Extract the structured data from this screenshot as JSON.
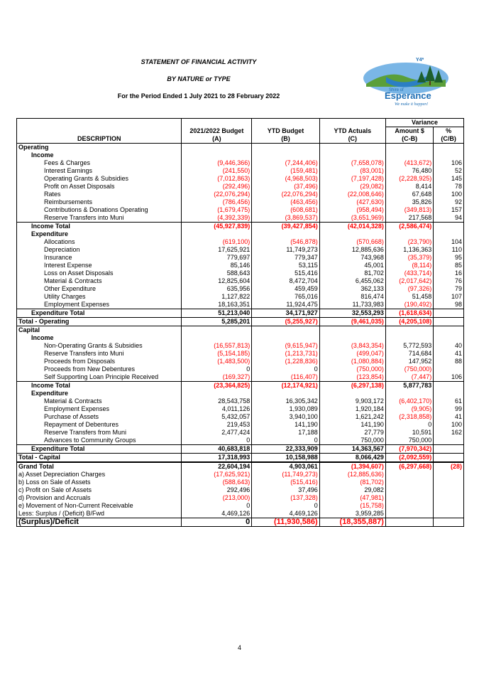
{
  "header": {
    "title": "STATEMENT OF FINANCIAL ACTIVITY",
    "subtitle": "BY NATURE or TYPE",
    "period": "For the Period Ended 1 July 2021 to 28 February 2022"
  },
  "logo": {
    "shire_of": "Shire of",
    "name": "Esperance",
    "tagline": "We make it happen!",
    "mark": "Y4*"
  },
  "columns": {
    "variance": "Variance",
    "description": "DESCRIPTION",
    "budget": "2021/2022 Budget",
    "budget_sub": "(A)",
    "ytd_budget": "YTD Budget",
    "ytd_budget_sub": "(B)",
    "ytd_actuals": "YTD Actuals",
    "ytd_actuals_sub": "(C)",
    "amount": "Amount $",
    "amount_sub": "(C-B)",
    "pct": "%",
    "pct_sub": "(C/B)"
  },
  "rows": [
    {
      "label": "Operating",
      "level": 0,
      "bold": true,
      "v": [
        "",
        "",
        "",
        "",
        ""
      ]
    },
    {
      "label": "Income",
      "level": 1,
      "bold": true,
      "v": [
        "",
        "",
        "",
        "",
        ""
      ]
    },
    {
      "label": "Fees & Charges",
      "level": 2,
      "v": [
        "(9,446,366)",
        "(7,244,406)",
        "(7,658,078)",
        "(413,672)",
        "106"
      ]
    },
    {
      "label": "Interest Earnings",
      "level": 2,
      "v": [
        "(241,550)",
        "(159,481)",
        "(83,001)",
        "76,480",
        "52"
      ]
    },
    {
      "label": "Operating Grants & Subsidies",
      "level": 2,
      "v": [
        "(7,012,863)",
        "(4,968,503)",
        "(7,197,428)",
        "(2,228,925)",
        "145"
      ]
    },
    {
      "label": "Profit on Asset Disposals",
      "level": 2,
      "v": [
        "(292,496)",
        "(37,496)",
        "(29,082)",
        "8,414",
        "78"
      ]
    },
    {
      "label": "Rates",
      "level": 2,
      "v": [
        "(22,076,294)",
        "(22,076,294)",
        "(22,008,646)",
        "67,648",
        "100"
      ]
    },
    {
      "label": "Reimbursements",
      "level": 2,
      "v": [
        "(786,456)",
        "(463,456)",
        "(427,630)",
        "35,826",
        "92"
      ]
    },
    {
      "label": "Contributions & Donations Operating",
      "level": 2,
      "v": [
        "(1,679,475)",
        "(608,681)",
        "(958,494)",
        "(349,813)",
        "157"
      ]
    },
    {
      "label": "Reserve Transfers into Muni",
      "level": 2,
      "v": [
        "(4,392,339)",
        "(3,869,537)",
        "(3,651,969)",
        "217,568",
        "94"
      ]
    },
    {
      "label": "Income Total",
      "level": 1,
      "bold": true,
      "border": "total",
      "v": [
        "(45,927,839)",
        "(39,427,854)",
        "(42,014,328)",
        "(2,586,474)",
        ""
      ]
    },
    {
      "label": "",
      "level": 0,
      "v": [
        "",
        "",
        "",
        "",
        ""
      ]
    },
    {
      "label": "Expenditure",
      "level": 1,
      "bold": true,
      "v": [
        "",
        "",
        "",
        "",
        ""
      ]
    },
    {
      "label": "Allocations",
      "level": 2,
      "v": [
        "(619,100)",
        "(546,878)",
        "(570,668)",
        "(23,790)",
        "104"
      ]
    },
    {
      "label": "Depreciation",
      "level": 2,
      "v": [
        "17,625,921",
        "11,749,273",
        "12,885,636",
        "1,136,363",
        "110"
      ]
    },
    {
      "label": "Insurance",
      "level": 2,
      "v": [
        "779,697",
        "779,347",
        "743,968",
        "(35,379)",
        "95"
      ]
    },
    {
      "label": "Interest Expense",
      "level": 2,
      "v": [
        "85,146",
        "53,115",
        "45,001",
        "(8,114)",
        "85"
      ]
    },
    {
      "label": "Loss on Asset Disposals",
      "level": 2,
      "v": [
        "588,643",
        "515,416",
        "81,702",
        "(433,714)",
        "16"
      ]
    },
    {
      "label": "Material & Contracts",
      "level": 2,
      "v": [
        "12,825,604",
        "8,472,704",
        "6,455,062",
        "(2,017,642)",
        "76"
      ]
    },
    {
      "label": "Other Expenditure",
      "level": 2,
      "v": [
        "635,956",
        "459,459",
        "362,133",
        "(97,326)",
        "79"
      ]
    },
    {
      "label": "Utility Charges",
      "level": 2,
      "v": [
        "1,127,822",
        "765,016",
        "816,474",
        "51,458",
        "107"
      ]
    },
    {
      "label": "Employment Expenses",
      "level": 2,
      "v": [
        "18,163,351",
        "11,924,475",
        "11,733,983",
        "(190,492)",
        "98"
      ]
    },
    {
      "label": "Expenditure Total",
      "level": 1,
      "bold": true,
      "border": "total",
      "v": [
        "51,213,040",
        "34,171,927",
        "32,553,293",
        "(1,618,634)",
        ""
      ]
    },
    {
      "label": "",
      "level": 0,
      "v": [
        "",
        "",
        "",
        "",
        ""
      ]
    },
    {
      "label": "Total - Operating",
      "level": 0,
      "bold": true,
      "border": "box",
      "v": [
        "5,285,201",
        "(5,255,927)",
        "(9,461,035)",
        "(4,205,108)",
        ""
      ]
    },
    {
      "label": "",
      "level": 0,
      "v": [
        "",
        "",
        "",
        "",
        ""
      ]
    },
    {
      "label": "Capital",
      "level": 0,
      "bold": true,
      "v": [
        "",
        "",
        "",
        "",
        ""
      ]
    },
    {
      "label": "Income",
      "level": 1,
      "bold": true,
      "v": [
        "",
        "",
        "",
        "",
        ""
      ]
    },
    {
      "label": "Non-Operating Grants & Subsidies",
      "level": 2,
      "v": [
        "(16,557,813)",
        "(9,615,947)",
        "(3,843,354)",
        "5,772,593",
        "40"
      ]
    },
    {
      "label": "Reserve Transfers into Muni",
      "level": 2,
      "v": [
        "(5,154,185)",
        "(1,213,731)",
        "(499,047)",
        "714,684",
        "41"
      ]
    },
    {
      "label": "Proceeds from Disposals",
      "level": 2,
      "v": [
        "(1,483,500)",
        "(1,228,836)",
        "(1,080,884)",
        "147,952",
        "88"
      ]
    },
    {
      "label": "Proceeds from New Debentures",
      "level": 2,
      "v": [
        "0",
        "0",
        "(750,000)",
        "(750,000)",
        ""
      ]
    },
    {
      "label": "Self Supporting Loan Principle Received",
      "level": 2,
      "v": [
        "(169,327)",
        "(116,407)",
        "(123,854)",
        "(7,447)",
        "106"
      ]
    },
    {
      "label": "Income Total",
      "level": 1,
      "bold": true,
      "border": "total",
      "v": [
        "(23,364,825)",
        "(12,174,921)",
        "(6,297,138)",
        "5,877,783",
        ""
      ]
    },
    {
      "label": "",
      "level": 0,
      "v": [
        "",
        "",
        "",
        "",
        ""
      ]
    },
    {
      "label": "Expenditure",
      "level": 1,
      "bold": true,
      "v": [
        "",
        "",
        "",
        "",
        ""
      ]
    },
    {
      "label": "Material & Contracts",
      "level": 2,
      "v": [
        "28,543,758",
        "16,305,342",
        "9,903,172",
        "(6,402,170)",
        "61"
      ]
    },
    {
      "label": "Employment Expenses",
      "level": 2,
      "v": [
        "4,011,126",
        "1,930,089",
        "1,920,184",
        "(9,905)",
        "99"
      ]
    },
    {
      "label": "Purchase of Assets",
      "level": 2,
      "v": [
        "5,432,057",
        "3,940,100",
        "1,621,242",
        "(2,318,858)",
        "41"
      ]
    },
    {
      "label": "Repayment of Debentures",
      "level": 2,
      "v": [
        "219,453",
        "141,190",
        "141,190",
        "0",
        "100"
      ]
    },
    {
      "label": "Reserve Transfers from Muni",
      "level": 2,
      "v": [
        "2,477,424",
        "17,188",
        "27,779",
        "10,591",
        "162"
      ]
    },
    {
      "label": "Advances to Community Groups",
      "level": 2,
      "v": [
        "0",
        "0",
        "750,000",
        "750,000",
        ""
      ]
    },
    {
      "label": "Expenditure Total",
      "level": 1,
      "bold": true,
      "border": "total",
      "v": [
        "40,683,818",
        "22,333,909",
        "14,363,567",
        "(7,970,342)",
        ""
      ]
    },
    {
      "label": "",
      "level": 0,
      "v": [
        "",
        "",
        "",
        "",
        ""
      ]
    },
    {
      "label": "Total - Capital",
      "level": 0,
      "bold": true,
      "border": "box",
      "v": [
        "17,318,993",
        "10,158,988",
        "8,066,429",
        "(2,092,559)",
        ""
      ]
    },
    {
      "label": "",
      "level": 0,
      "v": [
        "",
        "",
        "",
        "",
        ""
      ]
    },
    {
      "label": "Grand Total",
      "level": 0,
      "bold": true,
      "border": "grand",
      "v": [
        "22,604,194",
        "4,903,061",
        "(1,394,607)",
        "(6,297,668)",
        "(28)"
      ]
    },
    {
      "label": "a) Asset Depreciation Charges",
      "level": 0,
      "v": [
        "(17,625,921)",
        "(11,749,273)",
        "(12,885,636)",
        "",
        ""
      ]
    },
    {
      "label": "b) Loss on Sale of Assets",
      "level": 0,
      "v": [
        "(588,643)",
        "(515,416)",
        "(81,702)",
        "",
        ""
      ]
    },
    {
      "label": "c) Profit on Sale of Assets",
      "level": 0,
      "v": [
        "292,496",
        "37,496",
        "29,082",
        "",
        ""
      ]
    },
    {
      "label": "d) Provision and Accruals",
      "level": 0,
      "v": [
        "(213,000)",
        "(137,328)",
        "(47,981)",
        "",
        ""
      ]
    },
    {
      "label": "e) Movement of Non-Current Receivable",
      "level": 0,
      "v": [
        "0",
        "0",
        "(15,758)",
        "",
        ""
      ]
    },
    {
      "label": "Less: Surplus / (Deficit) B/Fwd",
      "level": 0,
      "v": [
        "4,469,126",
        "4,469,126",
        "3,959,285",
        "",
        ""
      ]
    },
    {
      "label": "(Surplus)/Deficit",
      "level": 0,
      "bold": true,
      "border": "surplus",
      "v": [
        "0",
        "(11,930,586)",
        "(18,355,887)",
        "",
        ""
      ]
    }
  ],
  "page_number": "4",
  "colors": {
    "negative": "#ff0000",
    "logo_blue": "#1f6fb5",
    "logo_green": "#7fbf3f"
  }
}
